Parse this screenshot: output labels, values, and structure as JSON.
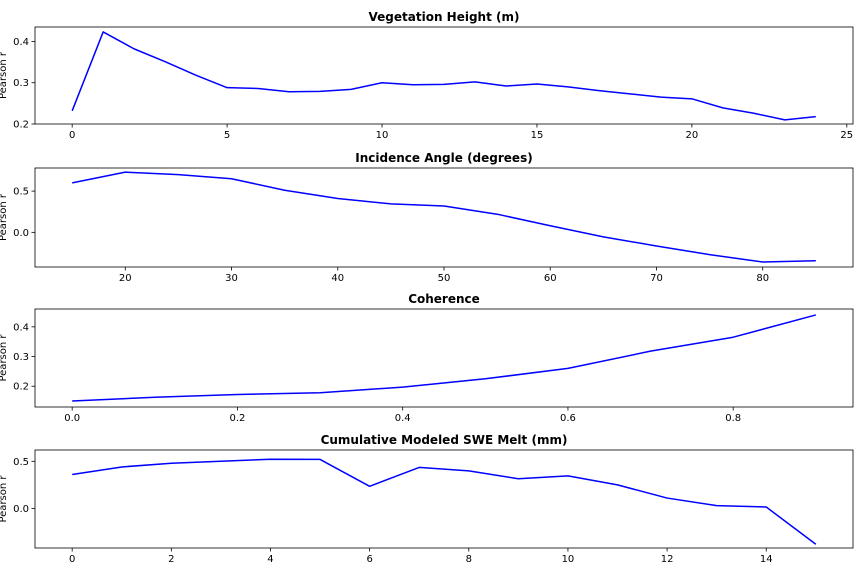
{
  "chart_data": [
    {
      "type": "line",
      "title": "Vegetation Height (m)",
      "ylabel": "Pearson r",
      "xlim": [
        -1.2,
        25.2
      ],
      "ylim": [
        0.2,
        0.435
      ],
      "xticks": [
        0,
        5,
        10,
        15,
        20,
        25
      ],
      "xtick_labels": [
        "0",
        "5",
        "10",
        "15",
        "20",
        "25"
      ],
      "yticks": [
        0.2,
        0.3,
        0.4
      ],
      "ytick_labels": [
        "0.2",
        "0.3",
        "0.4"
      ],
      "color": "#0000ff",
      "x": [
        0,
        1,
        2,
        3,
        4,
        5,
        6,
        7,
        8,
        9,
        10,
        11,
        12,
        13,
        14,
        15,
        16,
        17,
        18,
        19,
        20,
        21,
        22,
        23,
        24
      ],
      "y": [
        0.232,
        0.423,
        0.382,
        0.351,
        0.318,
        0.288,
        0.286,
        0.278,
        0.279,
        0.284,
        0.3,
        0.295,
        0.296,
        0.302,
        0.292,
        0.297,
        0.29,
        0.281,
        0.273,
        0.265,
        0.261,
        0.239,
        0.226,
        0.21,
        0.218
      ]
    },
    {
      "type": "line",
      "title": "Incidence Angle (degrees)",
      "ylabel": "Pearson r",
      "xlim": [
        11.5,
        88.5
      ],
      "ylim": [
        -0.42,
        0.78
      ],
      "xticks": [
        20,
        30,
        40,
        50,
        60,
        70,
        80
      ],
      "xtick_labels": [
        "20",
        "30",
        "40",
        "50",
        "60",
        "70",
        "80"
      ],
      "yticks": [
        0.0,
        0.5
      ],
      "ytick_labels": [
        "0.0",
        "0.5"
      ],
      "color": "#0000ff",
      "x": [
        15,
        20,
        25,
        30,
        35,
        40,
        45,
        50,
        55,
        60,
        65,
        70,
        75,
        80,
        85
      ],
      "y": [
        0.6,
        0.73,
        0.7,
        0.65,
        0.51,
        0.41,
        0.345,
        0.32,
        0.22,
        0.08,
        -0.055,
        -0.165,
        -0.27,
        -0.36,
        -0.345
      ]
    },
    {
      "type": "line",
      "title": "Coherence",
      "ylabel": "Pearson r",
      "xlim": [
        -0.045,
        0.945
      ],
      "ylim": [
        0.13,
        0.46
      ],
      "xticks": [
        0.0,
        0.2,
        0.4,
        0.6,
        0.8
      ],
      "xtick_labels": [
        "0.0",
        "0.2",
        "0.4",
        "0.6",
        "0.8"
      ],
      "yticks": [
        0.2,
        0.3,
        0.4
      ],
      "ytick_labels": [
        "0.2",
        "0.3",
        "0.4"
      ],
      "color": "#0000ff",
      "x": [
        0.0,
        0.1,
        0.2,
        0.3,
        0.4,
        0.5,
        0.6,
        0.7,
        0.8,
        0.9
      ],
      "y": [
        0.15,
        0.163,
        0.172,
        0.178,
        0.197,
        0.225,
        0.26,
        0.318,
        0.365,
        0.44
      ]
    },
    {
      "type": "line",
      "title": "Cumulative Modeled SWE Melt (mm)",
      "ylabel": "Pearson r",
      "xlim": [
        -0.75,
        15.75
      ],
      "ylim": [
        -0.42,
        0.62
      ],
      "xticks": [
        0,
        2,
        4,
        6,
        8,
        10,
        12,
        14
      ],
      "xtick_labels": [
        "0",
        "2",
        "4",
        "6",
        "8",
        "10",
        "12",
        "14"
      ],
      "yticks": [
        0.0,
        0.5
      ],
      "ytick_labels": [
        "0.0",
        "0.5"
      ],
      "color": "#0000ff",
      "x": [
        0,
        1,
        2,
        3,
        4,
        5,
        6,
        7,
        8,
        9,
        10,
        11,
        12,
        13,
        14,
        15
      ],
      "y": [
        0.36,
        0.44,
        0.48,
        0.5,
        0.522,
        0.52,
        0.235,
        0.435,
        0.398,
        0.315,
        0.345,
        0.25,
        0.11,
        0.03,
        0.015,
        -0.38
      ]
    }
  ]
}
